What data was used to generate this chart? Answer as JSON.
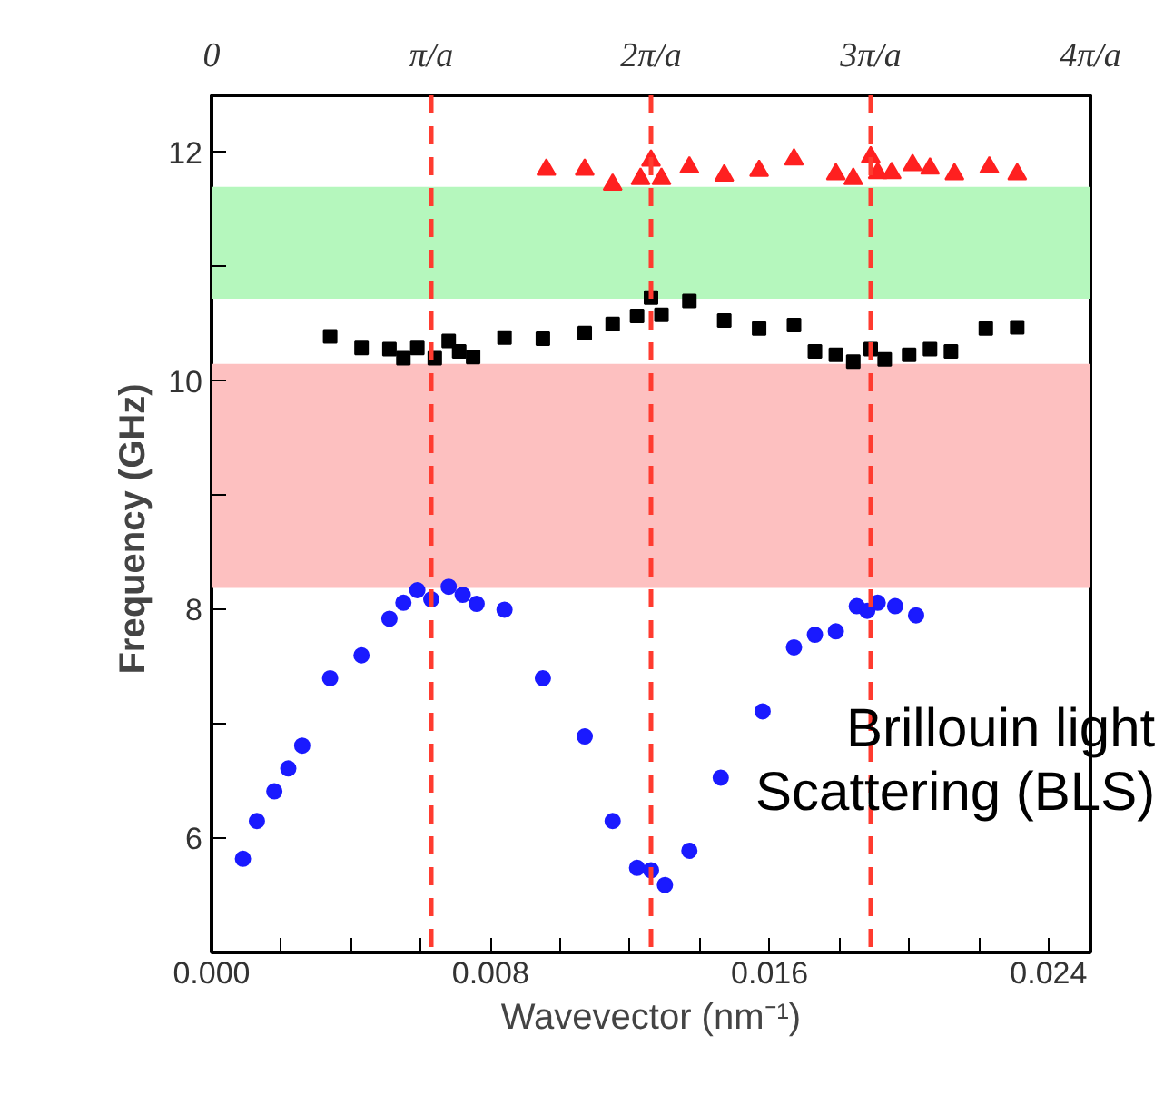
{
  "chart_data": {
    "type": "scatter",
    "xlabel": "Wavevector (nm⁻¹)",
    "ylabel": "Frequency  (GHz)",
    "xlim": [
      0,
      0.0252
    ],
    "ylim": [
      5.0,
      12.5
    ],
    "xticks": [
      {
        "value": 0,
        "label": "0.000"
      },
      {
        "value": 0.002,
        "label": null
      },
      {
        "value": 0.004,
        "label": null
      },
      {
        "value": 0.006,
        "label": null
      },
      {
        "value": 0.008,
        "label": "0.008"
      },
      {
        "value": 0.01,
        "label": null
      },
      {
        "value": 0.012,
        "label": null
      },
      {
        "value": 0.014,
        "label": null
      },
      {
        "value": 0.016,
        "label": "0.016"
      },
      {
        "value": 0.018,
        "label": null
      },
      {
        "value": 0.02,
        "label": null
      },
      {
        "value": 0.022,
        "label": null
      },
      {
        "value": 0.024,
        "label": "0.024"
      }
    ],
    "yticks": [
      6,
      {
        "value": 7,
        "label": null
      },
      8,
      {
        "value": 9,
        "label": null
      },
      10,
      {
        "value": 11,
        "label": null
      },
      12
    ],
    "x2lim": [
      0,
      4
    ],
    "x2ticks": [
      {
        "value": 0,
        "label": "0"
      },
      {
        "value": 1,
        "label": "π/a"
      },
      {
        "value": 2,
        "label": "2π/a"
      },
      {
        "value": 3,
        "label": "3π/a"
      },
      {
        "value": 4,
        "label": "4π/a"
      }
    ],
    "grid": false,
    "ref_lines": [
      {
        "axis": "x",
        "value": 0.0063,
        "color": "#ff3b2f",
        "line_style": "dashed"
      },
      {
        "axis": "x",
        "value": 0.0126,
        "color": "#ff3b2f",
        "line_style": "dashed"
      },
      {
        "axis": "x",
        "value": 0.0189,
        "color": "#ff3b2f",
        "line_style": "dashed"
      }
    ],
    "bands": [
      {
        "axis": "y",
        "from": 10.72,
        "to": 11.7,
        "color": "#b5f7bd"
      },
      {
        "axis": "y",
        "from": 8.19,
        "to": 10.15,
        "color": "#fdc0c0"
      }
    ],
    "annotations": [
      "Brillouin light\nScattering (BLS)"
    ],
    "series": [
      {
        "color": "#1a1aff",
        "marker": "circle",
        "x": [
          0.0009,
          0.0013,
          0.0018,
          0.0022,
          0.0026,
          0.0034,
          0.0043,
          0.0051,
          0.0055,
          0.0059,
          0.0063,
          0.0068,
          0.0072,
          0.0076,
          0.0084,
          0.0095,
          0.0107,
          0.0115,
          0.0122,
          0.0126,
          0.013,
          0.0137,
          0.0146,
          0.0158,
          0.0167,
          0.0173,
          0.0179,
          0.0185,
          0.0188,
          0.0191,
          0.0196,
          0.0202
        ],
        "values": [
          5.82,
          6.15,
          6.41,
          6.61,
          6.81,
          7.4,
          7.6,
          7.92,
          8.06,
          8.17,
          8.09,
          8.2,
          8.13,
          8.05,
          8.0,
          7.4,
          6.89,
          6.15,
          5.74,
          5.72,
          5.59,
          5.89,
          6.53,
          7.11,
          7.67,
          7.78,
          7.81,
          8.03,
          7.99,
          8.06,
          8.03,
          7.95
        ]
      },
      {
        "color": "#000000",
        "marker": "square",
        "x": [
          0.0034,
          0.0043,
          0.0051,
          0.0055,
          0.0059,
          0.0064,
          0.0068,
          0.0071,
          0.0075,
          0.0084,
          0.0095,
          0.0107,
          0.0115,
          0.0122,
          0.0126,
          0.0129,
          0.0137,
          0.0147,
          0.0157,
          0.0167,
          0.0173,
          0.0179,
          0.0184,
          0.0189,
          0.0193,
          0.02,
          0.0206,
          0.0212,
          0.0222,
          0.0231
        ],
        "values": [
          10.39,
          10.29,
          10.28,
          10.2,
          10.29,
          10.2,
          10.35,
          10.26,
          10.21,
          10.38,
          10.37,
          10.42,
          10.5,
          10.57,
          10.73,
          10.58,
          10.7,
          10.53,
          10.46,
          10.49,
          10.26,
          10.23,
          10.17,
          10.28,
          10.19,
          10.23,
          10.28,
          10.26,
          10.46,
          10.47
        ]
      },
      {
        "color": "#ff2020",
        "marker": "triangle",
        "x": [
          0.0096,
          0.0107,
          0.0115,
          0.0123,
          0.0126,
          0.0129,
          0.0137,
          0.0147,
          0.0157,
          0.0167,
          0.0179,
          0.0184,
          0.0189,
          0.0191,
          0.0195,
          0.0201,
          0.0206,
          0.0213,
          0.0223,
          0.0231
        ],
        "values": [
          11.85,
          11.85,
          11.72,
          11.77,
          11.93,
          11.77,
          11.87,
          11.8,
          11.84,
          11.94,
          11.81,
          11.77,
          11.96,
          11.82,
          11.82,
          11.89,
          11.86,
          11.81,
          11.87,
          11.81
        ]
      }
    ]
  }
}
